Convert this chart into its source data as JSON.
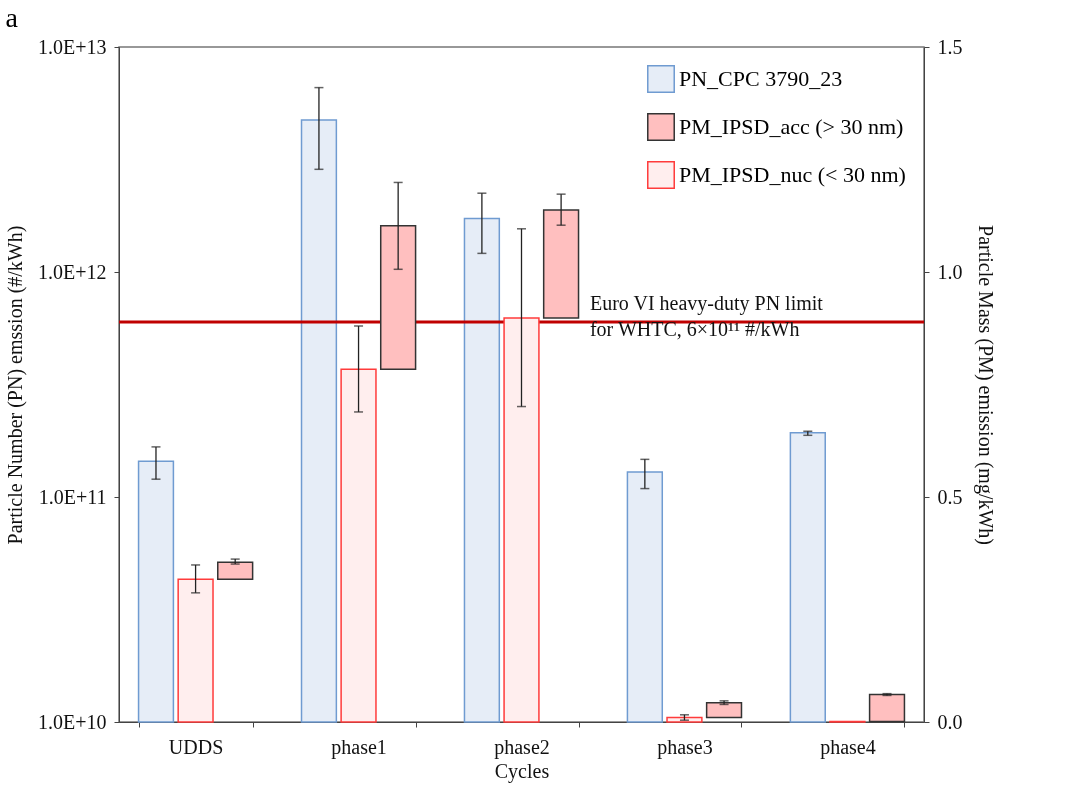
{
  "chart_data": {
    "type": "bar",
    "title": "a",
    "xlabel": "Cycles",
    "ylabel": "Particle Number (PN) emssion (#/kWh)",
    "y2label": "Particle Mass (PM) emission (mg/kWh)",
    "categories": [
      "UDDS",
      "phase1",
      "phase2",
      "phase3",
      "phase4"
    ],
    "series": [
      {
        "name": "PN_CPC 3790_23",
        "color": "#e6edf7",
        "values": [
          144000000000.0,
          4740000000000.0,
          1730000000000.0,
          129000000000.0,
          193000000000.0
        ],
        "errors": [
          [
            120000000000.0,
            167000000000.0
          ],
          [
            2860000000000.0,
            6600000000000.0
          ],
          [
            1210000000000.0,
            2240000000000.0
          ],
          [
            109000000000.0,
            147000000000.0
          ],
          [
            188000000000.0,
            196000000000.0
          ]
        ]
      },
      {
        "name": "PM_IPSD_acc (> 30 nm)",
        "color": "#ffbfbf",
        "axis": "y2",
        "base": [
          0.317,
          0.784,
          0.898,
          0.01,
          0.001
        ],
        "values": [
          0.038,
          0.319,
          0.24,
          0.033,
          0.06
        ],
        "errors": [
          [
            0.351,
            0.362
          ],
          [
            1.006,
            1.199
          ],
          [
            1.104,
            1.173
          ],
          [
            0.039,
            0.047
          ],
          [
            0.059,
            0.063
          ]
        ]
      },
      {
        "name": "PM_IPSD_nuc (< 30 nm)",
        "color": "#ffeeee",
        "axis": "y2",
        "values": [
          0.317,
          0.784,
          0.898,
          0.01,
          0.001
        ],
        "errors": [
          [
            0.287,
            0.349
          ],
          [
            0.689,
            0.88
          ],
          [
            0.701,
            1.096
          ],
          [
            0.004,
            0.016
          ],
          null
        ]
      }
    ],
    "log": "y",
    "ylim": [
      10000000000.0,
      10000000000000.0
    ],
    "yticks": [
      {
        "value": 10000000000.0,
        "label": "1.0E+10"
      },
      {
        "value": 100000000000.0,
        "label": "1.0E+11"
      },
      {
        "value": 1000000000000.0,
        "label": "1.0E+12"
      },
      {
        "value": 10000000000000.0,
        "label": "1.0E+13"
      }
    ],
    "y2lim": [
      0,
      1.5
    ],
    "y2ticks": [
      {
        "value": 0,
        "label": "0.0"
      },
      0.5,
      {
        "value": 1,
        "label": "1.0"
      },
      1.5
    ],
    "ref_lines": [
      {
        "axis": "y",
        "value": 600000000000.0,
        "label": "Euro VI heavy-duty PN limit\nfor WHTC, 6×10¹¹ #/kWh",
        "color": "#c00000",
        "line_style": "solid"
      }
    ],
    "grid": false,
    "legend": "top right"
  }
}
